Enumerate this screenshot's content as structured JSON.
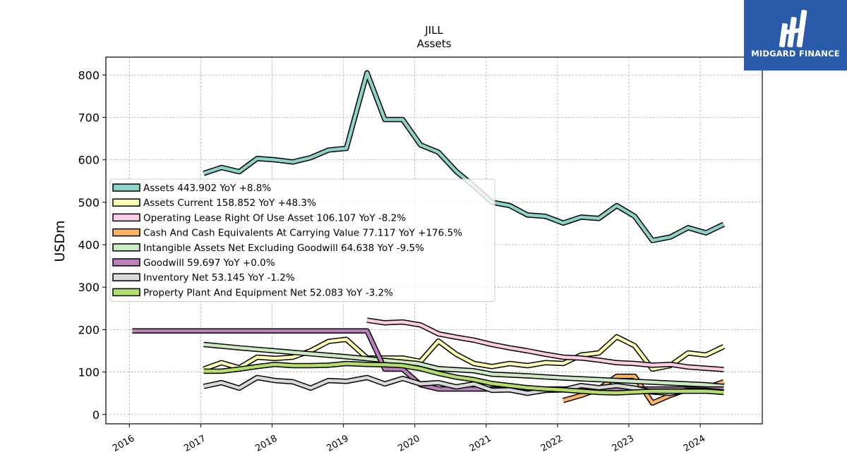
{
  "logo": {
    "text": "MIDGARD FINANCE",
    "icon": "midgard-finance-logo",
    "background": "#2a5aaa"
  },
  "chart_data": {
    "type": "line",
    "title": "JILL",
    "subtitle": "Assets",
    "xlabel": "",
    "ylabel": "USDm",
    "xlim": [
      2015.67,
      2024.87
    ],
    "ylim": [
      -22,
      842
    ],
    "x_ticks": [
      "2016",
      "2017",
      "2018",
      "2019",
      "2020",
      "2021",
      "2022",
      "2023",
      "2024"
    ],
    "y_ticks": [
      0,
      100,
      200,
      300,
      400,
      500,
      600,
      700,
      800
    ],
    "grid": true,
    "legend_position": "left",
    "series": [
      {
        "name": "Assets",
        "label": "Assets  443.902 YoY +8.8%",
        "color": "#8dd3c7",
        "x": [
          2017.04,
          2017.29,
          2017.54,
          2017.79,
          2018.04,
          2018.29,
          2018.54,
          2018.79,
          2019.04,
          2019.33,
          2019.58,
          2019.83,
          2020.08,
          2020.33,
          2020.58,
          2020.83,
          2021.08,
          2021.33,
          2021.58,
          2021.83,
          2022.08,
          2022.33,
          2022.58,
          2022.83,
          2023.08,
          2023.33,
          2023.58,
          2023.83,
          2024.08,
          2024.33
        ],
        "y": [
          568,
          582,
          572,
          603,
          600,
          595,
          605,
          623,
          627,
          805,
          695,
          695,
          635,
          618,
          573,
          538,
          500,
          492,
          470,
          467,
          451,
          465,
          462,
          492,
          467,
          410,
          418,
          440,
          428,
          448
        ]
      },
      {
        "name": "Assets Current",
        "label": "Assets Current  158.852 YoY +48.3%",
        "color": "#ffffb3",
        "x": [
          2017.04,
          2017.29,
          2017.54,
          2017.79,
          2018.04,
          2018.29,
          2018.54,
          2018.79,
          2019.04,
          2019.33,
          2019.58,
          2019.83,
          2020.08,
          2020.33,
          2020.58,
          2020.83,
          2021.08,
          2021.33,
          2021.58,
          2021.83,
          2022.08,
          2022.33,
          2022.58,
          2022.83,
          2023.08,
          2023.33,
          2023.58,
          2023.83,
          2024.08,
          2024.33
        ],
        "y": [
          107,
          122,
          110,
          135,
          132,
          135,
          150,
          172,
          177,
          133,
          133,
          133,
          125,
          173,
          142,
          120,
          113,
          120,
          115,
          122,
          120,
          140,
          145,
          183,
          162,
          107,
          115,
          145,
          140,
          160
        ]
      },
      {
        "name": "Operating Lease Right Of Use Asset",
        "label": "Operating Lease Right Of Use Asset  106.107 YoY -8.2%",
        "color": "#fccde5",
        "x": [
          2019.33,
          2019.58,
          2019.83,
          2020.08,
          2020.33,
          2020.58,
          2020.83,
          2021.08,
          2021.33,
          2021.58,
          2021.83,
          2022.08,
          2022.33,
          2022.58,
          2022.83,
          2023.08,
          2023.33,
          2023.58,
          2023.83,
          2024.08,
          2024.33
        ],
        "y": [
          222,
          216,
          218,
          211,
          190,
          182,
          175,
          165,
          157,
          150,
          142,
          135,
          133,
          128,
          122,
          120,
          116,
          118,
          112,
          109,
          106
        ]
      },
      {
        "name": "Cash And Cash Equivalents At Carrying Value",
        "label": "Cash And Cash Equivalents At Carrying Value  77.117 YoY +176.5%",
        "color": "#fdb462",
        "x": [
          2022.08,
          2022.33,
          2022.58,
          2022.83,
          2023.08,
          2023.33,
          2023.58,
          2023.83,
          2024.08,
          2024.33
        ],
        "y": [
          33,
          45,
          60,
          90,
          90,
          27,
          45,
          60,
          62,
          77
        ]
      },
      {
        "name": "Intangible Assets Net Excluding Goodwill",
        "label": "Intangible Assets Net Excluding Goodwill  64.638 YoY -9.5%",
        "color": "#ccebc5",
        "x": [
          2017.04,
          2017.54,
          2018.04,
          2018.54,
          2019.04,
          2019.54,
          2020.04,
          2020.33,
          2020.83,
          2021.08,
          2021.58,
          2022.08,
          2022.58,
          2023.08,
          2023.58,
          2024.08,
          2024.33
        ],
        "y": [
          165,
          157,
          150,
          143,
          136,
          128,
          120,
          108,
          103,
          95,
          91,
          86,
          82,
          78,
          74,
          70,
          66
        ]
      },
      {
        "name": "Goodwill",
        "label": "Goodwill  59.697 YoY +0.0%",
        "color": "#bc80bd",
        "x": [
          2016.04,
          2016.58,
          2017.08,
          2017.58,
          2018.08,
          2018.58,
          2019.08,
          2019.33,
          2019.58,
          2019.83,
          2020.08,
          2020.33,
          2020.58,
          2020.83,
          2021.08,
          2021.58,
          2022.08,
          2022.58,
          2023.08,
          2023.58,
          2024.08,
          2024.33
        ],
        "y": [
          197,
          197,
          197,
          197,
          197,
          197,
          197,
          197,
          107,
          107,
          70,
          60,
          60,
          60,
          60,
          60,
          60,
          60,
          60,
          60,
          60,
          60
        ]
      },
      {
        "name": "Inventory Net",
        "label": "Inventory Net  53.145 YoY -1.2%",
        "color": "#d9d9d9",
        "x": [
          2017.04,
          2017.29,
          2017.54,
          2017.79,
          2018.04,
          2018.29,
          2018.54,
          2018.79,
          2019.04,
          2019.33,
          2019.58,
          2019.83,
          2020.08,
          2020.33,
          2020.58,
          2020.83,
          2021.08,
          2021.33,
          2021.58,
          2021.83,
          2022.08,
          2022.33,
          2022.58,
          2022.83,
          2023.08,
          2023.33,
          2023.58,
          2023.83,
          2024.08,
          2024.33
        ],
        "y": [
          66,
          75,
          62,
          87,
          80,
          77,
          62,
          80,
          78,
          87,
          72,
          85,
          72,
          75,
          65,
          72,
          57,
          58,
          50,
          57,
          58,
          68,
          63,
          68,
          62,
          53,
          50,
          57,
          57,
          53
        ]
      },
      {
        "name": "Property Plant And Equipment Net",
        "label": "Property Plant And Equipment Net  52.083 YoY -3.2%",
        "color": "#b3de69",
        "x": [
          2017.04,
          2017.29,
          2017.54,
          2017.79,
          2018.04,
          2018.29,
          2018.54,
          2018.79,
          2019.04,
          2019.33,
          2019.58,
          2019.83,
          2020.08,
          2020.33,
          2020.58,
          2020.83,
          2021.08,
          2021.33,
          2021.58,
          2021.83,
          2022.08,
          2022.33,
          2022.58,
          2022.83,
          2023.08,
          2023.33,
          2023.58,
          2023.83,
          2024.08,
          2024.33
        ],
        "y": [
          102,
          102,
          107,
          113,
          118,
          115,
          115,
          116,
          120,
          118,
          117,
          115,
          108,
          97,
          88,
          82,
          73,
          68,
          63,
          60,
          58,
          55,
          52,
          51,
          53,
          55,
          55,
          55,
          55,
          52
        ]
      }
    ]
  }
}
